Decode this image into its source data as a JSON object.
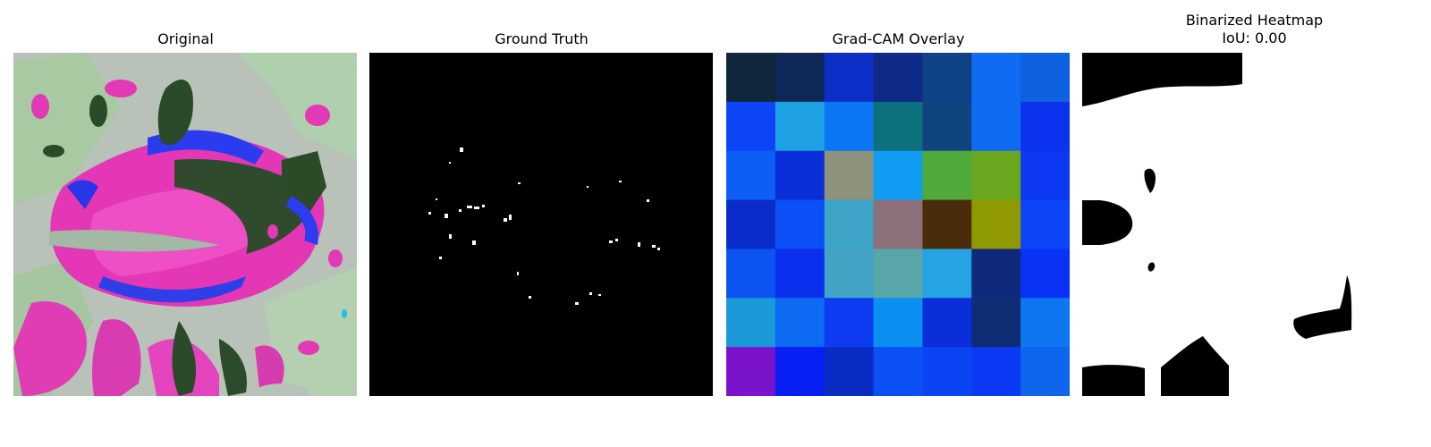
{
  "panels": [
    {
      "title": "Original"
    },
    {
      "title": "Ground Truth"
    },
    {
      "title": "Grad-CAM Overlay"
    },
    {
      "title": "Binarized Heatmap",
      "subtitle": "IoU: 0.00"
    }
  ],
  "colors": {
    "background": "#ffffff",
    "mask_black": "#000000",
    "mask_white": "#ffffff"
  },
  "gradcam_grid": [
    [
      "#10263d",
      "#0f2858",
      "#0d2fc8",
      "#0e2a86",
      "#0f4285",
      "#0f6bf2",
      "#0f62df"
    ],
    [
      "#0d44f6",
      "#1ea2e3",
      "#0c77f4",
      "#0d707d",
      "#0f447f",
      "#0f6bf2",
      "#0b33ee"
    ],
    [
      "#0c5ef4",
      "#0a2fda",
      "#8c927c",
      "#119cf3",
      "#4fa93b",
      "#6aa71e",
      "#0b38f0"
    ],
    [
      "#0a2dc9",
      "#0c4ff7",
      "#3da3c7",
      "#8d717a",
      "#4a2c0a",
      "#8f9a02",
      "#0b45f5"
    ],
    [
      "#0d53f2",
      "#0a30ee",
      "#42a3c4",
      "#58a6a7",
      "#25a3e2",
      "#0f2a7b",
      "#0a32f6"
    ],
    [
      "#1a9ad9",
      "#0d6af2",
      "#0d3bf2",
      "#0c8ff3",
      "#0a2fda",
      "#0f2d75",
      "#0f76f2"
    ],
    [
      "#7b13cc",
      "#071ff2",
      "#0a2cc2",
      "#0c4ff4",
      "#0b44f3",
      "#0b39f4",
      "#0d66ec"
    ]
  ]
}
